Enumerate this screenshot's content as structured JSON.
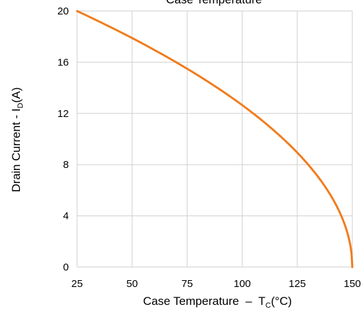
{
  "chart_data": {
    "type": "line",
    "title": "Case Temperature",
    "xlabel": {
      "main": "Case Temperature  –  T",
      "sub": "C",
      "unit": "(°C)"
    },
    "ylabel": {
      "main": "Drain Current - I",
      "sub": "D",
      "unit": "(A)"
    },
    "xlim": [
      25,
      150
    ],
    "ylim": [
      0,
      20
    ],
    "x_ticks": [
      "25",
      "50",
      "75",
      "100",
      "125",
      "150"
    ],
    "y_ticks": [
      "0",
      "4",
      "8",
      "12",
      "16",
      "20"
    ],
    "grid": true,
    "series": [
      {
        "color": "#f07c1e",
        "x": [
          25,
          37.5,
          50,
          62.5,
          75,
          87.5,
          100,
          112.5,
          125,
          137.5,
          143.75,
          147.5,
          150
        ],
        "y": [
          20,
          18.97,
          17.89,
          16.73,
          15.49,
          14.14,
          12.65,
          10.95,
          8.94,
          6.32,
          4.47,
          2.83,
          0
        ]
      }
    ]
  }
}
